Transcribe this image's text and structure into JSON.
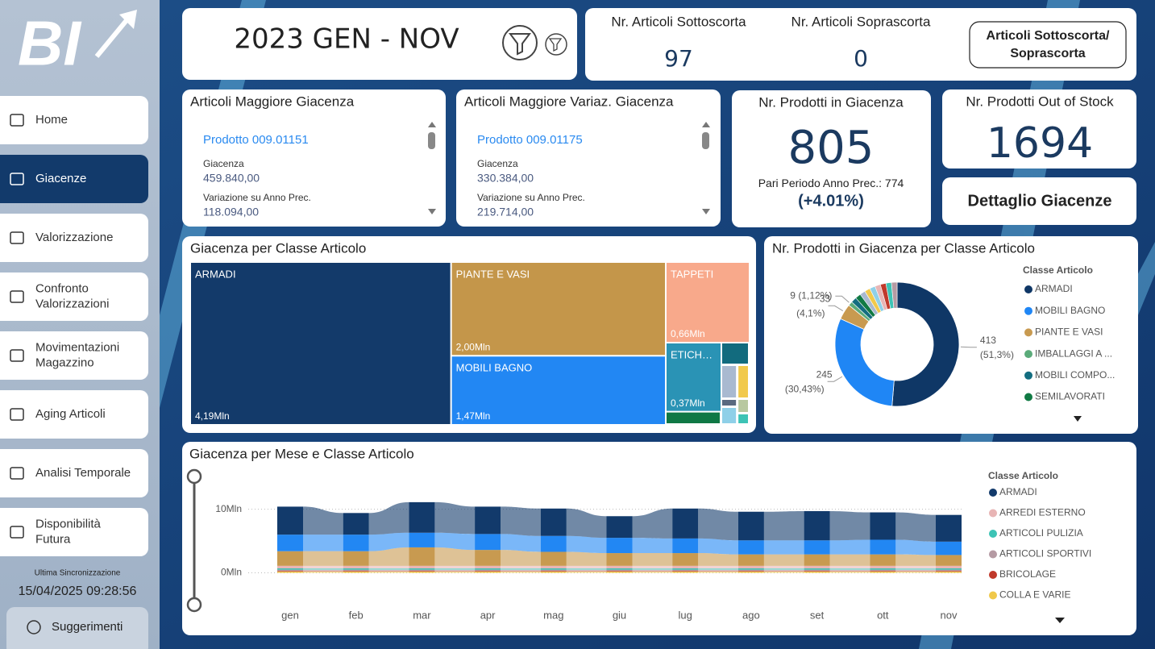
{
  "sidebar": {
    "logo": "BI",
    "nav": [
      [
        "Home"
      ],
      [
        "Giacenze"
      ],
      [
        "Valorizzazione"
      ],
      [
        "Confronto",
        "Valorizzazioni"
      ],
      [
        "Movimentazioni",
        "Magazzino"
      ],
      [
        "Aging Articoli"
      ],
      [
        "Analisi Temporale"
      ],
      [
        "Disponibilità",
        "Futura"
      ]
    ],
    "active": 1,
    "sync_label": "Ultima Sincronizzazione",
    "sync_time": "15/04/2025 09:28:56",
    "help": "Suggerimenti"
  },
  "header": {
    "period": "2023 GEN - NOV"
  },
  "kpis_top": {
    "items": [
      {
        "label": "Nr. Articoli Sottoscorta",
        "value": 97
      },
      {
        "label": "Nr. Articoli Soprascorta",
        "value": 0
      }
    ],
    "button": [
      "Articoli Sottoscorta/",
      "Soprascorta"
    ]
  },
  "lists": [
    {
      "title": "Articoli Maggiore Giacenza",
      "item": "Prodotto 009.01151",
      "fields": [
        {
          "label": "Giacenza",
          "value": "459.840,00"
        },
        {
          "label": "Variazione su Anno Prec.",
          "value": "118.094,00"
        }
      ]
    },
    {
      "title": "Articoli Maggiore Variaz. Giacenza",
      "item": "Prodotto 009.01175",
      "fields": [
        {
          "label": "Giacenza",
          "value": "330.384,00"
        },
        {
          "label": "Variazione su Anno Prec.",
          "value": "219.714,00"
        }
      ]
    }
  ],
  "stock": {
    "title": "Nr. Prodotti in Giacenza",
    "value": 805,
    "prev_label": "Pari Periodo Anno Prec.:",
    "prev_value": 774,
    "change": "(+4.01%)"
  },
  "out_of_stock": {
    "title": "Nr. Prodotti Out of Stock",
    "value": 1694
  },
  "detail_button": "Dettaglio Giacenze",
  "treemap": {
    "title": "Giacenza per Classe Articolo",
    "tiles": [
      {
        "name": "ARMADI",
        "value": 4.19,
        "value_label": "4,19Mln",
        "color": "#133a6a"
      },
      {
        "name": "PIANTE E VASI",
        "value": 2.0,
        "value_label": "2,00Mln",
        "color": "#c4964a"
      },
      {
        "name": "MOBILI BAGNO",
        "value": 1.47,
        "value_label": "1,47Mln",
        "color": "#2287f3"
      },
      {
        "name": "TAPPETI",
        "value": 0.66,
        "value_label": "0,66Mln",
        "color": "#f8a98b"
      },
      {
        "name": "ETICH…",
        "value": 0.37,
        "value_label": "0,37Mln",
        "color": "#2a93b5"
      }
    ],
    "other_colors": [
      "#126b7e",
      "#a9b9d0",
      "#f1c94c",
      "#0f7845",
      "#5a6a80",
      "#b8c8a0",
      "#8fd0e8",
      "#3dc3b5"
    ]
  },
  "donut": {
    "title": "Nr. Prodotti in Giacenza per Classe Articolo",
    "legend_title": "Classe Articolo",
    "legend": [
      {
        "name": "ARMADI",
        "color": "#0f3766"
      },
      {
        "name": "MOBILI BAGNO",
        "color": "#1f86f5"
      },
      {
        "name": "PIANTE E VASI",
        "color": "#c89a50"
      },
      {
        "name": "IMBALLAGGI A ...",
        "color": "#5bab7a"
      },
      {
        "name": "MOBILI COMPO...",
        "color": "#136d80"
      },
      {
        "name": "SEMILAVORATI",
        "color": "#117a44"
      }
    ],
    "slices": [
      {
        "value": 413,
        "pct": "(51,3%)",
        "color": "#0f3766"
      },
      {
        "value": 245,
        "pct": "(30,43%)",
        "color": "#1f86f5"
      },
      {
        "value": 33,
        "pct": "(4,1%)",
        "color": "#c89a50"
      },
      {
        "value": 9,
        "pct": "(1,12%)",
        "color": "#5bab7a"
      }
    ],
    "other_colors": [
      "#136d80",
      "#117a44",
      "#a9b9d0",
      "#f1c94c",
      "#8fd0e8",
      "#e8b5b5",
      "#c0392b",
      "#3dc3b5",
      "#b59aa3"
    ]
  },
  "ribbon": {
    "title": "Giacenza per Mese e Classe Articolo",
    "categories": [
      "gen",
      "feb",
      "mar",
      "apr",
      "mag",
      "giu",
      "lug",
      "ago",
      "set",
      "ott",
      "nov"
    ],
    "ylim": [
      -1.2,
      14
    ],
    "yticks": [
      {
        "value": 10,
        "label": "10Mln"
      },
      {
        "value": 0,
        "label": "0Mln"
      }
    ],
    "legend_title": "Classe Articolo",
    "series": [
      {
        "name": "COLLA E VARIE",
        "color": "#f0c84a",
        "values": [
          0.2,
          0.2,
          0.2,
          0.2,
          0.2,
          0.2,
          0.2,
          0.2,
          0.2,
          0.2,
          0.2
        ]
      },
      {
        "name": "BRICOLAGE",
        "color": "#c0392b",
        "values": [
          0.1,
          0.1,
          0.1,
          0.1,
          0.1,
          0.1,
          0.1,
          0.1,
          0.1,
          0.1,
          0.1
        ]
      },
      {
        "name": "ARTICOLI SPORTIVI",
        "color": "#b59aa3",
        "values": [
          0.2,
          0.2,
          0.2,
          0.2,
          0.2,
          0.2,
          0.2,
          0.2,
          0.2,
          0.2,
          0.2
        ]
      },
      {
        "name": "ARTICOLI PULIZIA",
        "color": "#3dc3b5",
        "values": [
          0.2,
          0.2,
          0.2,
          0.2,
          0.2,
          0.2,
          0.2,
          0.2,
          0.2,
          0.2,
          0.2
        ]
      },
      {
        "name": "ARREDI ESTERNO",
        "color": "#e8b5b5",
        "values": [
          0.4,
          0.4,
          0.4,
          0.4,
          0.4,
          0.4,
          0.4,
          0.4,
          0.4,
          0.4,
          0.4
        ]
      },
      {
        "color": "#c89a50",
        "values": [
          2.3,
          2.3,
          2.9,
          2.5,
          2.2,
          2.0,
          2.0,
          1.8,
          1.8,
          1.8,
          1.7
        ]
      },
      {
        "color": "#2287f3",
        "values": [
          2.6,
          2.6,
          2.3,
          2.5,
          2.5,
          2.4,
          2.3,
          2.2,
          2.2,
          2.3,
          2.1
        ]
      },
      {
        "name": "ARMADI",
        "color": "#123a6b",
        "values": [
          4.4,
          3.4,
          4.8,
          4.3,
          4.3,
          3.4,
          4.7,
          4.5,
          4.6,
          4.3,
          4.2
        ]
      }
    ]
  }
}
